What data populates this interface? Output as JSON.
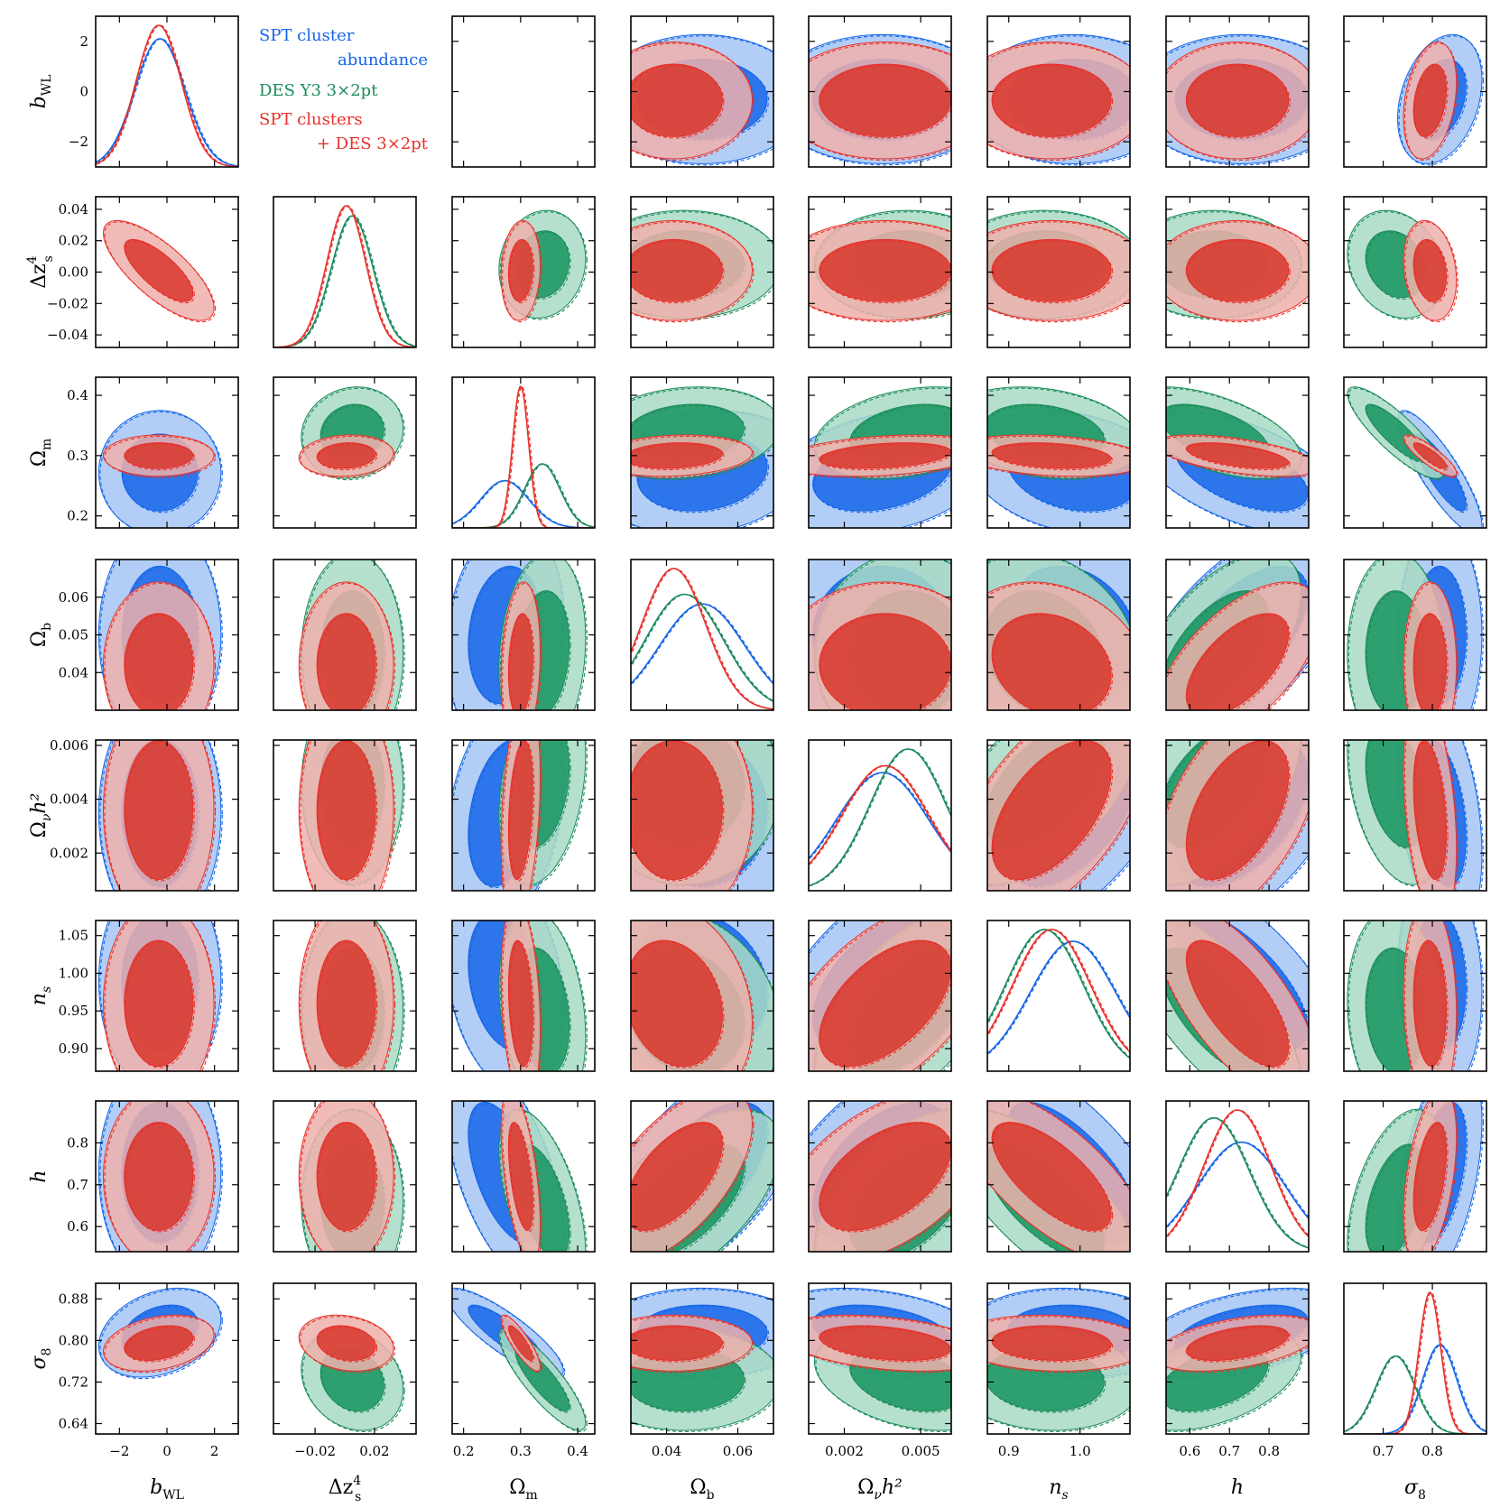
{
  "legend": [
    {
      "label": "SPT cluster abundance",
      "color": "#1565e8"
    },
    {
      "label": "DES Y3 3×2pt",
      "color": "#1b8a5a"
    },
    {
      "label": "SPT clusters + DES 3×2pt",
      "color": "#e8302a"
    }
  ],
  "colors": {
    "spt": "#1565e8",
    "spt_light": "#a4c6f4",
    "des": "#1b8a5a",
    "des_dark": "#16945f",
    "des_light": "#a8dbc4",
    "joint": "#e8302a",
    "joint_dark": "#d8362c",
    "joint_light": "#efb0ab"
  },
  "chart_data": {
    "type": "triangle",
    "grid": false,
    "legend_position": "upper-left (row 1, columns 2-3)",
    "parameters": [
      {
        "key": "bWL",
        "label_main": "b",
        "label_sub": "WL",
        "label_sup": "",
        "range": [
          -3,
          3
        ],
        "ticks": [
          -2,
          0,
          2
        ],
        "tick_labels": [
          "−2",
          "0",
          "2"
        ]
      },
      {
        "key": "dzs4",
        "label_main": "Δz",
        "label_sub": "s",
        "label_sup": "4",
        "range": [
          -0.048,
          0.048
        ],
        "ticks": [
          -0.04,
          -0.02,
          0.0,
          0.02,
          0.04
        ],
        "tick_labels": [
          "−0.04",
          "−0.02",
          "0.00",
          "0.02",
          "0.04"
        ],
        "x_ticks": [
          -0.02,
          0.02
        ],
        "x_tick_labels": [
          "−0.02",
          "0.02"
        ]
      },
      {
        "key": "Om",
        "label_main": "Ω",
        "label_sub": "m",
        "label_sup": "",
        "range": [
          0.18,
          0.43
        ],
        "ticks": [
          0.2,
          0.3,
          0.4
        ],
        "tick_labels": [
          "0.2",
          "0.3",
          "0.4"
        ]
      },
      {
        "key": "Ob",
        "label_main": "Ω",
        "label_sub": "b",
        "label_sup": "",
        "range": [
          0.03,
          0.07
        ],
        "ticks": [
          0.04,
          0.05,
          0.06
        ],
        "tick_labels": [
          "0.04",
          "0.05",
          "0.06"
        ],
        "x_ticks": [
          0.04,
          0.06
        ],
        "x_tick_labels": [
          "0.04",
          "0.06"
        ]
      },
      {
        "key": "Onuh2",
        "label_main": "Ω",
        "label_sub": "ν",
        "label_sup": "",
        "label_tail": "h²",
        "range": [
          0.0006,
          0.0062
        ],
        "ticks": [
          0.002,
          0.004,
          0.006
        ],
        "tick_labels": [
          "0.002",
          "0.004",
          "0.006"
        ],
        "x_ticks": [
          0.002,
          0.005
        ],
        "x_tick_labels": [
          "0.002",
          "0.005"
        ]
      },
      {
        "key": "ns",
        "label_main": "n",
        "label_sub": "s",
        "label_sup": "",
        "range": [
          0.87,
          1.07
        ],
        "ticks": [
          0.9,
          0.95,
          1.0,
          1.05
        ],
        "tick_labels": [
          "0.90",
          "0.95",
          "1.00",
          "1.05"
        ],
        "x_ticks": [
          0.9,
          1.0
        ],
        "x_tick_labels": [
          "0.9",
          "1.0"
        ]
      },
      {
        "key": "h",
        "label_main": "h",
        "label_sub": "",
        "label_sup": "",
        "range": [
          0.54,
          0.9
        ],
        "ticks": [
          0.6,
          0.7,
          0.8
        ],
        "tick_labels": [
          "0.6",
          "0.7",
          "0.8"
        ]
      },
      {
        "key": "s8",
        "label_main": "σ",
        "label_sub": "8",
        "label_sup": "",
        "range": [
          0.62,
          0.91
        ],
        "ticks": [
          0.64,
          0.72,
          0.8,
          0.88
        ],
        "tick_labels": [
          "0.64",
          "0.72",
          "0.80",
          "0.88"
        ],
        "x_ticks": [
          0.7,
          0.8
        ],
        "x_tick_labels": [
          "0.7",
          "0.8"
        ]
      }
    ],
    "series": [
      {
        "key": "spt",
        "params": [
          "bWL",
          "Om",
          "Ob",
          "Onuh2",
          "ns",
          "h",
          "s8"
        ],
        "mean": [
          -0.3,
          0.272,
          0.05,
          0.0035,
          0.99,
          0.73,
          0.815
        ],
        "sd": [
          1.05,
          0.042,
          0.012,
          0.0018,
          0.06,
          0.11,
          0.035
        ]
      },
      {
        "key": "des",
        "params": [
          "dzs4",
          "Om",
          "Ob",
          "Onuh2",
          "ns",
          "h",
          "s8"
        ],
        "mean": [
          0.005,
          0.338,
          0.045,
          0.0045,
          0.95,
          0.66,
          0.725
        ],
        "sd": [
          0.014,
          0.031,
          0.011,
          0.0015,
          0.055,
          0.09,
          0.04
        ]
      },
      {
        "key": "joint",
        "params": [
          "bWL",
          "dzs4",
          "Om",
          "Ob",
          "Onuh2",
          "ns",
          "h",
          "s8"
        ],
        "mean": [
          -0.35,
          0.001,
          0.3,
          0.042,
          0.0036,
          0.96,
          0.72,
          0.795
        ],
        "sd": [
          0.95,
          0.013,
          0.014,
          0.009,
          0.0017,
          0.055,
          0.085,
          0.022
        ]
      }
    ],
    "correlations": [
      {
        "a": "bWL",
        "b": "dzs4",
        "r": -0.75
      },
      {
        "a": "bWL",
        "b": "s8",
        "r": 0.3
      },
      {
        "a": "dzs4",
        "b": "Om",
        "r": 0.1
      },
      {
        "a": "dzs4",
        "b": "s8",
        "r": -0.2
      },
      {
        "a": "Om",
        "b": "Ob",
        "r": 0.15
      },
      {
        "a": "Om",
        "b": "Onuh2",
        "r": 0.3
      },
      {
        "a": "Om",
        "b": "ns",
        "r": -0.25
      },
      {
        "a": "Om",
        "b": "h",
        "r": -0.55
      },
      {
        "a": "Om",
        "b": "s8",
        "r": -0.85
      },
      {
        "a": "Ob",
        "b": "h",
        "r": 0.6
      },
      {
        "a": "Ob",
        "b": "ns",
        "r": -0.2
      },
      {
        "a": "Onuh2",
        "b": "ns",
        "r": 0.55
      },
      {
        "a": "Onuh2",
        "b": "h",
        "r": 0.5
      },
      {
        "a": "Onuh2",
        "b": "s8",
        "r": -0.35
      },
      {
        "a": "ns",
        "b": "h",
        "r": -0.7
      },
      {
        "a": "ns",
        "b": "s8",
        "r": -0.1
      },
      {
        "a": "h",
        "b": "s8",
        "r": 0.45
      }
    ],
    "credible_levels": [
      "68%",
      "95%"
    ]
  }
}
